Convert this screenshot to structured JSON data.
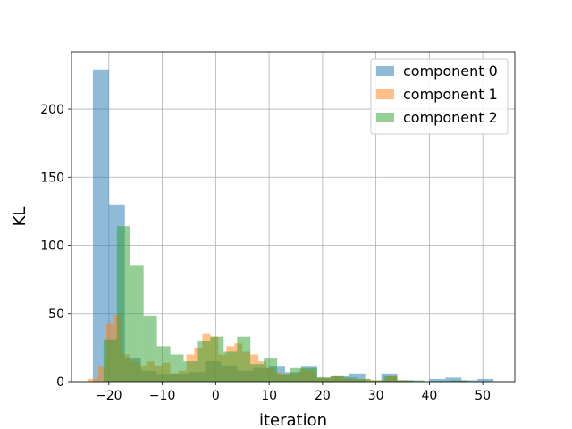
{
  "chart_data": {
    "type": "bar",
    "xlabel": "iteration",
    "ylabel": "KL",
    "xlim": [
      -27,
      56
    ],
    "ylim": [
      0,
      242
    ],
    "xticks": [
      -20,
      -10,
      0,
      10,
      20,
      30,
      40,
      50
    ],
    "xtick_labels": [
      "−20",
      "−10",
      "0",
      "10",
      "20",
      "30",
      "40",
      "50"
    ],
    "yticks": [
      0,
      50,
      100,
      150,
      200
    ],
    "ytick_labels": [
      "0",
      "50",
      "100",
      "150",
      "200"
    ],
    "grid": true,
    "legend_position": "top-right",
    "series": [
      {
        "name": "component 0",
        "color": "#1f77b4",
        "opacity": 0.5,
        "bins": [
          [
            -23.0,
            -20.0,
            229
          ],
          [
            -20.0,
            -17.0,
            130
          ],
          [
            -17.0,
            -14.0,
            17
          ],
          [
            -14.0,
            -11.0,
            8
          ],
          [
            -11.0,
            -8.0,
            5
          ],
          [
            -8.0,
            -5.0,
            6
          ],
          [
            -5.0,
            -2.0,
            7
          ],
          [
            -2.0,
            1.0,
            15
          ],
          [
            1.0,
            4.0,
            12
          ],
          [
            4.0,
            7.0,
            8
          ],
          [
            7.0,
            10.0,
            10
          ],
          [
            10.0,
            13.0,
            11
          ],
          [
            13.0,
            16.0,
            7
          ],
          [
            16.0,
            19.0,
            11
          ],
          [
            19.0,
            22.0,
            3
          ],
          [
            22.0,
            25.0,
            4
          ],
          [
            25.0,
            28.0,
            6
          ],
          [
            31.0,
            34.0,
            6
          ],
          [
            34.0,
            37.0,
            1
          ],
          [
            40.0,
            43.0,
            2
          ],
          [
            43.0,
            46.0,
            3
          ],
          [
            46.0,
            49.0,
            1
          ],
          [
            49.0,
            52.0,
            2
          ]
        ]
      },
      {
        "name": "component 1",
        "color": "#ff7f0e",
        "opacity": 0.5,
        "bins": [
          [
            -24.0,
            -22.0,
            2
          ],
          [
            -22.0,
            -20.5,
            11
          ],
          [
            -20.5,
            -19.0,
            43
          ],
          [
            -19.0,
            -17.5,
            49
          ],
          [
            -17.5,
            -16.0,
            20
          ],
          [
            -16.0,
            -14.5,
            15
          ],
          [
            -14.5,
            -13.0,
            12
          ],
          [
            -13.0,
            -11.5,
            15
          ],
          [
            -11.5,
            -10.0,
            12
          ],
          [
            -10.0,
            -8.5,
            14
          ],
          [
            -8.5,
            -7.0,
            6
          ],
          [
            -7.0,
            -5.5,
            8
          ],
          [
            -5.5,
            -4.0,
            20
          ],
          [
            -4.0,
            -2.5,
            25
          ],
          [
            -2.5,
            -1.0,
            35
          ],
          [
            -1.0,
            0.5,
            33
          ],
          [
            0.5,
            2.0,
            20
          ],
          [
            2.0,
            3.5,
            26
          ],
          [
            3.5,
            5.0,
            28
          ],
          [
            5.0,
            6.5,
            22
          ],
          [
            6.5,
            8.0,
            20
          ],
          [
            8.0,
            9.5,
            15
          ],
          [
            9.5,
            11.0,
            10
          ],
          [
            11.0,
            12.5,
            7
          ],
          [
            12.5,
            14.0,
            5
          ],
          [
            14.0,
            15.5,
            6
          ],
          [
            15.5,
            17.0,
            9
          ],
          [
            17.0,
            18.5,
            8
          ],
          [
            18.5,
            20.0,
            3
          ],
          [
            20.0,
            21.5,
            3
          ],
          [
            21.5,
            23.0,
            4
          ],
          [
            23.0,
            24.5,
            3
          ],
          [
            24.5,
            26.0,
            2
          ],
          [
            26.0,
            27.5,
            2
          ],
          [
            27.5,
            29.0,
            2
          ],
          [
            29.0,
            32.0,
            1
          ],
          [
            32.0,
            34.0,
            4
          ],
          [
            34.0,
            36.0,
            1
          ]
        ]
      },
      {
        "name": "component 2",
        "color": "#2ca02c",
        "opacity": 0.5,
        "bins": [
          [
            -21.0,
            -18.5,
            31
          ],
          [
            -18.5,
            -16.0,
            114
          ],
          [
            -16.0,
            -13.5,
            85
          ],
          [
            -13.5,
            -11.0,
            48
          ],
          [
            -11.0,
            -8.5,
            26
          ],
          [
            -8.5,
            -6.0,
            20
          ],
          [
            -6.0,
            -3.5,
            15
          ],
          [
            -3.5,
            -1.0,
            30
          ],
          [
            -1.0,
            1.5,
            33
          ],
          [
            1.5,
            4.0,
            22
          ],
          [
            4.0,
            6.5,
            33
          ],
          [
            6.5,
            9.0,
            13
          ],
          [
            9.0,
            11.5,
            17
          ],
          [
            11.5,
            14.0,
            5
          ],
          [
            14.0,
            16.5,
            10
          ],
          [
            16.5,
            19.0,
            10
          ],
          [
            19.0,
            21.5,
            3
          ],
          [
            21.5,
            24.0,
            4
          ],
          [
            24.0,
            26.5,
            3
          ],
          [
            26.5,
            29.0,
            2
          ],
          [
            29.0,
            31.5,
            1
          ],
          [
            31.5,
            34.0,
            4
          ],
          [
            34.0,
            36.5,
            1
          ],
          [
            36.5,
            39.0,
            1
          ],
          [
            41.0,
            44.0,
            0.5
          ],
          [
            44.0,
            47.0,
            1
          ]
        ]
      }
    ]
  }
}
